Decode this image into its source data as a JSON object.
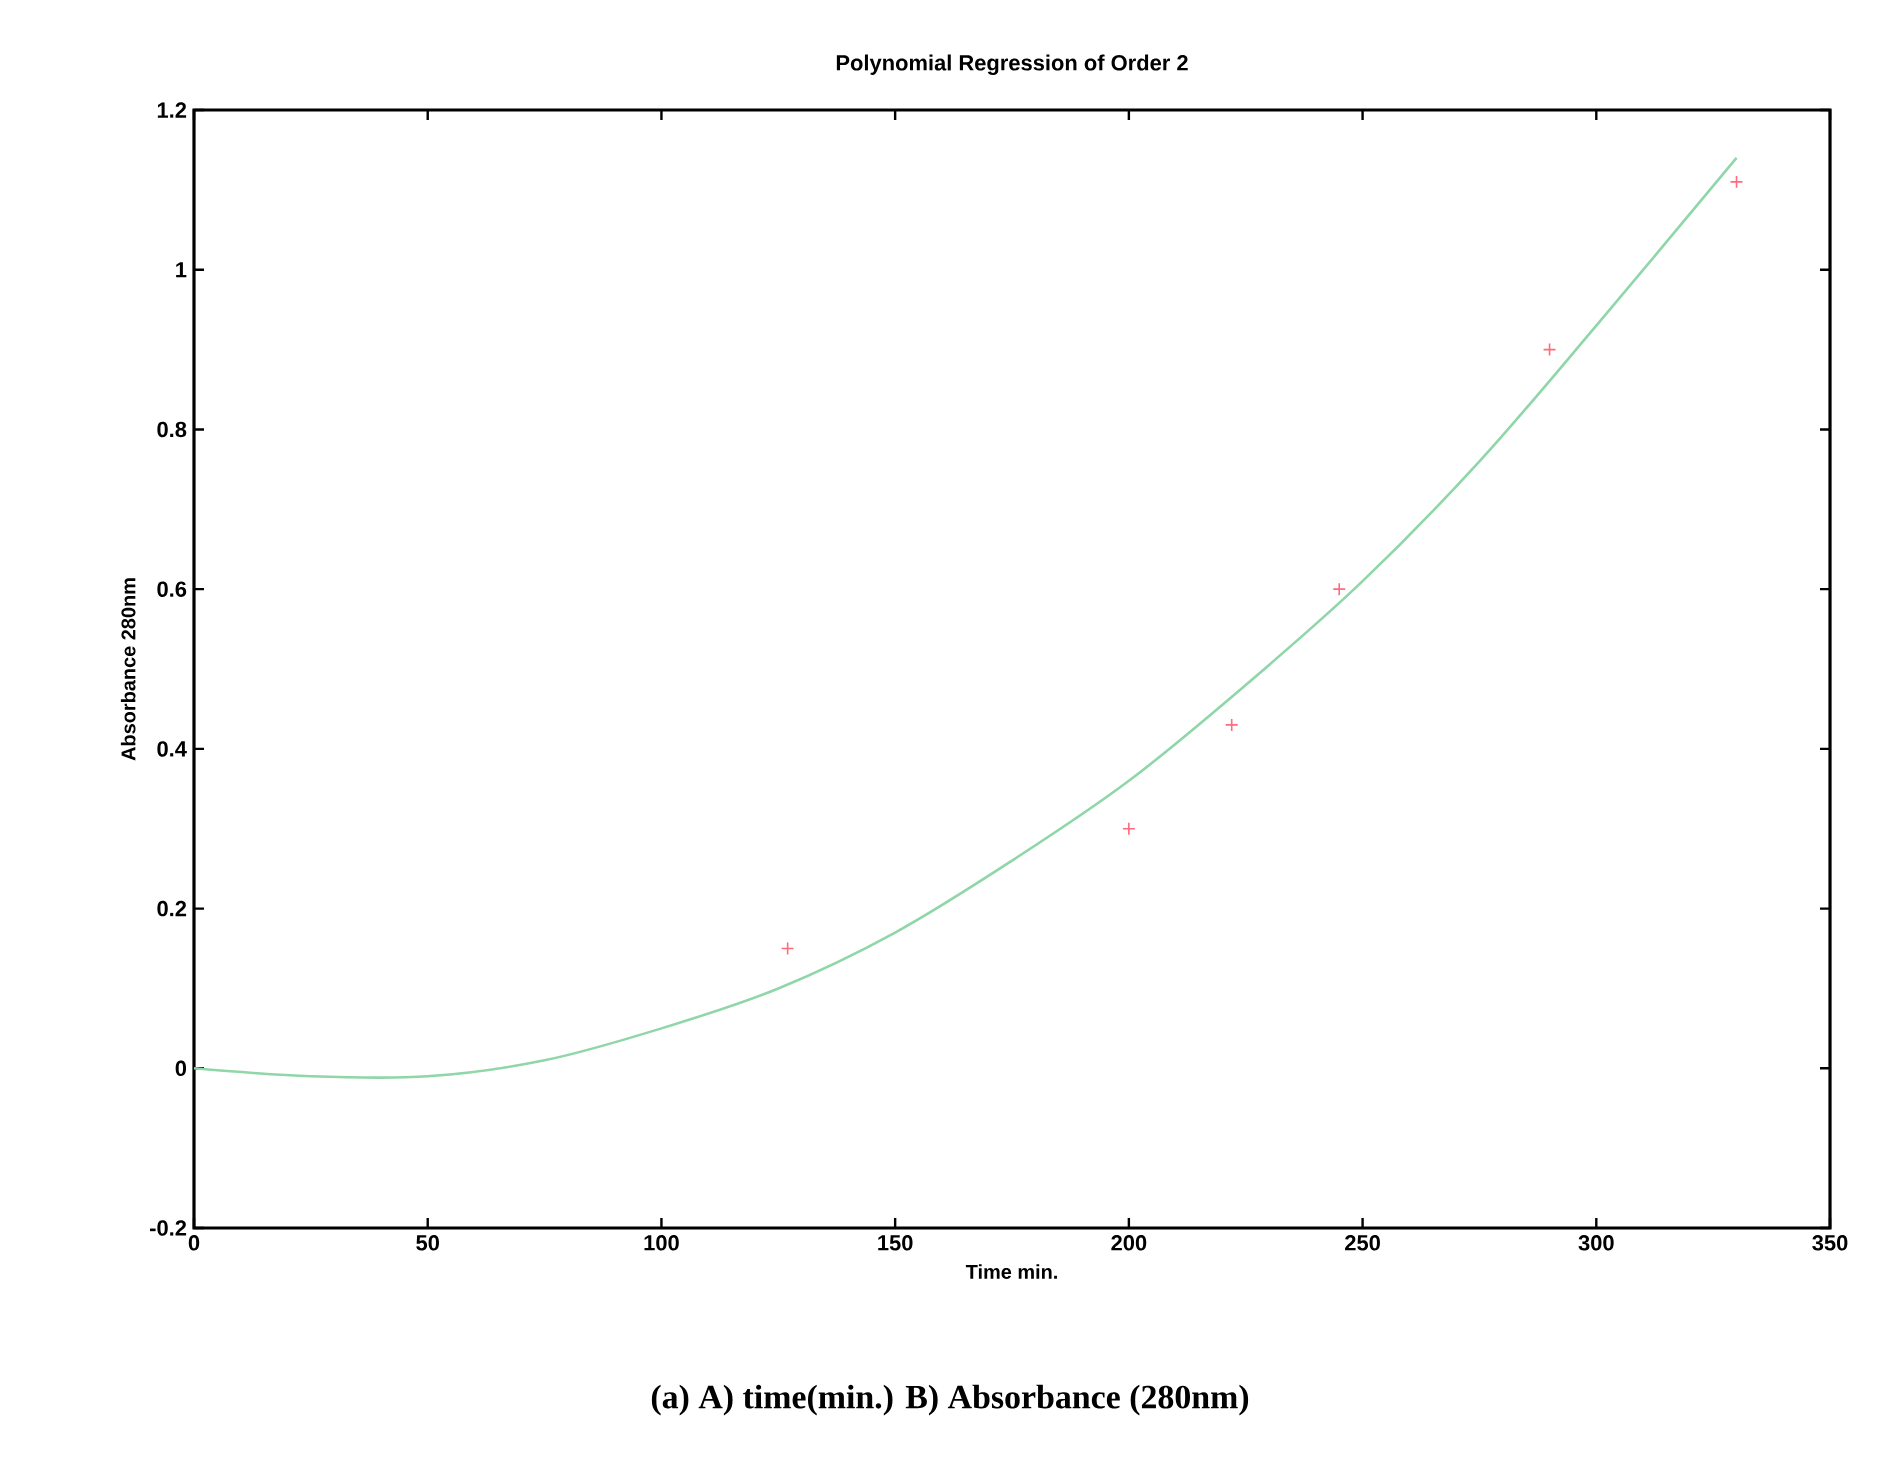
{
  "chart_data": {
    "type": "scatter",
    "title": "Polynomial Regression of Order 2",
    "xlabel": "Time min.",
    "ylabel": "Absorbance 280nm",
    "annotations": [
      "(a) A) time(min.) B) Absorbance (280nm)"
    ],
    "xlim": [
      0,
      350
    ],
    "ylim": [
      -0.2,
      1.2
    ],
    "xticks": [
      0,
      50,
      100,
      150,
      200,
      250,
      300,
      350
    ],
    "yticks": [
      -0.2,
      0,
      0.2,
      0.4,
      0.6,
      0.8,
      1,
      1.2
    ],
    "grid": false,
    "series": [
      {
        "color": "#ff6b7a",
        "marker": "cross",
        "x": [
          127,
          200,
          222,
          245,
          290,
          330
        ],
        "values": [
          0.15,
          0.3,
          0.43,
          0.6,
          0.9,
          1.11
        ]
      },
      {
        "type": "line",
        "color": "#8fd6a8",
        "line_style": "solid",
        "marker": "none",
        "x": [
          0,
          25,
          50,
          75,
          100,
          125,
          150,
          175,
          200,
          225,
          250,
          275,
          300,
          330
        ],
        "values": [
          0.0,
          -0.01,
          -0.01,
          0.01,
          0.05,
          0.1,
          0.17,
          0.26,
          0.36,
          0.48,
          0.61,
          0.76,
          0.93,
          1.14
        ]
      }
    ]
  }
}
